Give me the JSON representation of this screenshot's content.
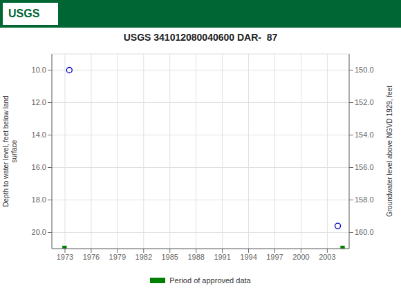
{
  "chart_data": {
    "type": "scatter",
    "title": "USGS 341012080040600 DAR-  87",
    "annotations": [
      "USGS"
    ],
    "x": [
      1973.5,
      2004.2
    ],
    "values": [
      10.0,
      19.6
    ],
    "color": "#0000cc",
    "marker": "open_circle",
    "approved_periods": {
      "name": "Period of approved data",
      "color": "#008000",
      "x_ranges": [
        [
          1972.7,
          1973.2
        ],
        [
          2004.5,
          2005.0
        ]
      ]
    },
    "ylabel": "Depth to water level, feet below land\nsurface",
    "y2label": "Groundwater level above NGVD 1929, feet",
    "xlim": [
      1971.5,
      2005.5
    ],
    "xticks": [
      1973,
      1976,
      1979,
      1982,
      1985,
      1988,
      1991,
      1994,
      1997,
      2000,
      2003
    ],
    "ylim": [
      21.0,
      9.0
    ],
    "yticks": [
      {
        "value": 10.0,
        "label": "10.0"
      },
      {
        "value": 12.0,
        "label": "12.0"
      },
      {
        "value": 14.0,
        "label": "14.0"
      },
      {
        "value": 16.0,
        "label": "16.0"
      },
      {
        "value": 18.0,
        "label": "18.0"
      },
      {
        "value": 20.0,
        "label": "20.0"
      }
    ],
    "y2lim": [
      161.0,
      149.0
    ],
    "y2ticks": [
      {
        "value": 160.0,
        "label": "160.0"
      },
      {
        "value": 158.0,
        "label": "158.0"
      },
      {
        "value": 156.0,
        "label": "156.0"
      },
      {
        "value": 154.0,
        "label": "154.0"
      },
      {
        "value": 152.0,
        "label": "152.0"
      },
      {
        "value": 150.0,
        "label": "150.0"
      }
    ],
    "grid": true,
    "legend": "bottom"
  }
}
